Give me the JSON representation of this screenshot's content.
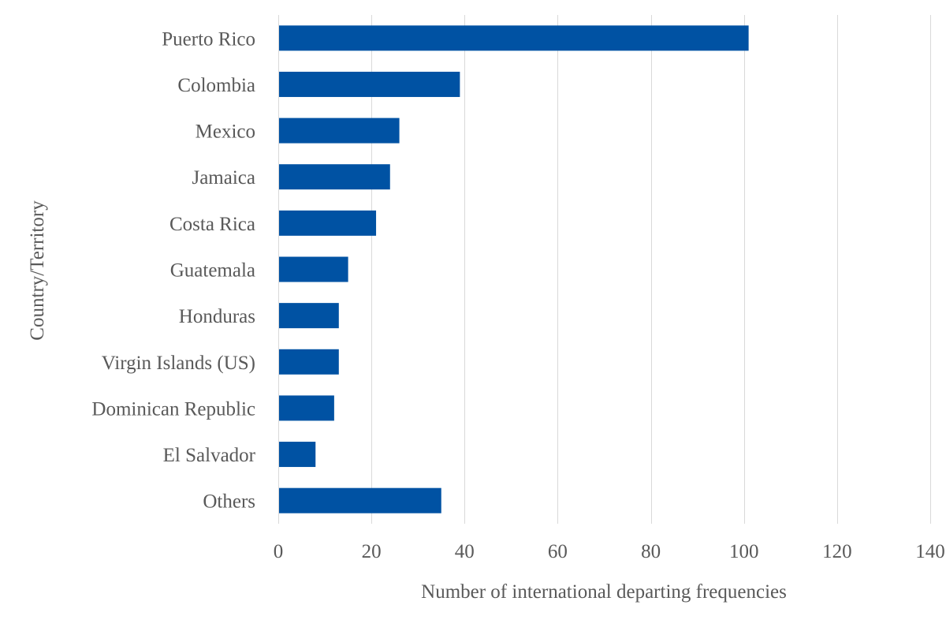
{
  "chart_data": {
    "type": "bar",
    "orientation": "horizontal",
    "title": "",
    "xlabel": "Number of international departing frequencies",
    "ylabel": "Country/Territory",
    "categories": [
      "Puerto Rico",
      "Colombia",
      "Mexico",
      "Jamaica",
      "Costa Rica",
      "Guatemala",
      "Honduras",
      "Virgin Islands (US)",
      "Dominican Republic",
      "El Salvador",
      "Others"
    ],
    "values": [
      101,
      39,
      26,
      24,
      21,
      15,
      13,
      13,
      12,
      8,
      35
    ],
    "xlim": [
      0,
      140
    ],
    "xticks": [
      0,
      20,
      40,
      60,
      80,
      100,
      120,
      140
    ],
    "grid": "vertical",
    "legend": "none",
    "bar_color": "#0052a3"
  }
}
